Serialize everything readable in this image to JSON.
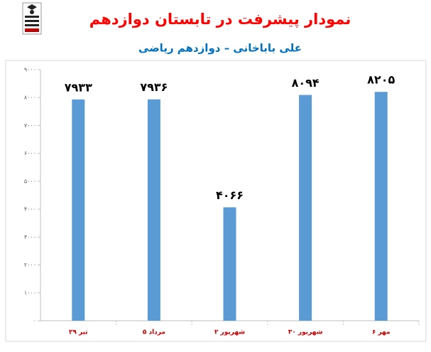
{
  "chart_data": {
    "type": "bar",
    "title": "نمودار پیشرفت در تابستان دوازدهم",
    "subtitle": "علی باباخانی – دوازدهم ریاضی",
    "categories": [
      "۲۹ تیر",
      "۵ مرداد",
      "۲ شهریور",
      "۳۰ شهریور",
      "۶ مهر"
    ],
    "values": [
      7933,
      7936,
      4066,
      8094,
      8205
    ],
    "value_labels": [
      "۷۹۳۳",
      "۷۹۳۶",
      "۴۰۶۶",
      "۸۰۹۴",
      "۸۲۰۵"
    ],
    "color": "#5b9bd5",
    "ylim": [
      0,
      9000
    ],
    "yticks": [
      {
        "value": 0,
        "label": "۰"
      },
      {
        "value": 1000,
        "label": "۱۰۰۰"
      },
      {
        "value": 2000,
        "label": "۲۰۰۰"
      },
      {
        "value": 3000,
        "label": "۳۰۰۰"
      },
      {
        "value": 4000,
        "label": "۴۰۰۰"
      },
      {
        "value": 5000,
        "label": "۵۰۰۰"
      },
      {
        "value": 6000,
        "label": "۶۰۰۰"
      },
      {
        "value": 7000,
        "label": "۷۰۰۰"
      },
      {
        "value": 8000,
        "label": "۸۰۰۰"
      },
      {
        "value": 9000,
        "label": "۹۰۰۰"
      }
    ],
    "grid": false
  }
}
